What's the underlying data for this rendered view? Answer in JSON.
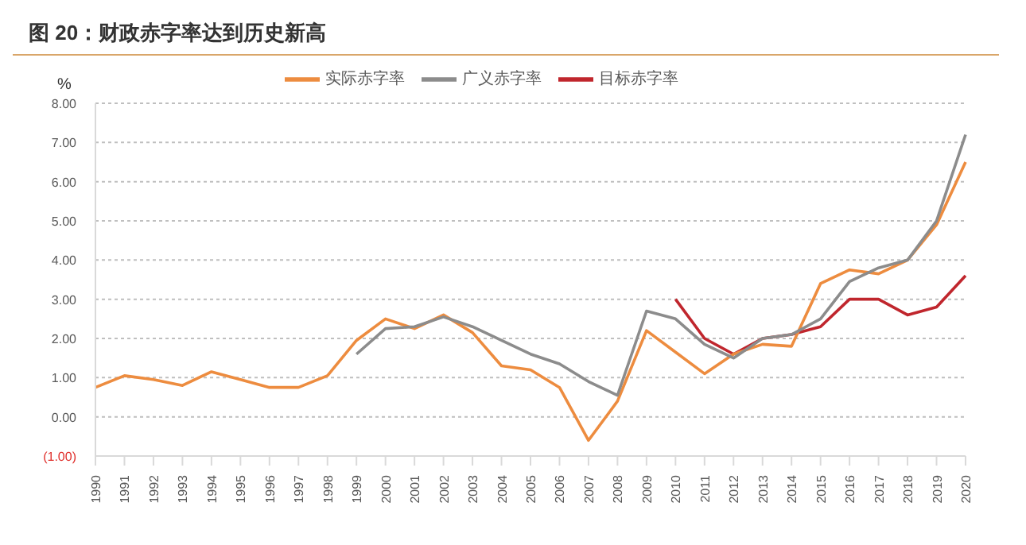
{
  "chart_data": {
    "type": "line",
    "title": "图 20：财政赤字率达到历史新高",
    "ylabel": "%",
    "categories": [
      "1990",
      "1991",
      "1992",
      "1993",
      "1994",
      "1995",
      "1996",
      "1997",
      "1998",
      "1999",
      "2000",
      "2001",
      "2002",
      "2003",
      "2004",
      "2005",
      "2006",
      "2007",
      "2008",
      "2009",
      "2010",
      "2011",
      "2012",
      "2013",
      "2014",
      "2015",
      "2016",
      "2017",
      "2018",
      "2019",
      "2020"
    ],
    "series": [
      {
        "name": "目标赤字率",
        "color": "#c0262d",
        "values": [
          null,
          null,
          null,
          null,
          null,
          null,
          null,
          null,
          null,
          null,
          null,
          null,
          null,
          null,
          null,
          null,
          null,
          null,
          null,
          null,
          3.0,
          2.0,
          1.6,
          2.0,
          2.1,
          2.3,
          3.0,
          3.0,
          2.6,
          2.8,
          3.6
        ]
      },
      {
        "name": "实际赤字率",
        "color": "#ed8c3f",
        "values": [
          0.75,
          1.05,
          0.95,
          0.8,
          1.15,
          0.95,
          0.75,
          0.75,
          1.05,
          1.95,
          2.5,
          2.25,
          2.6,
          2.15,
          1.3,
          1.2,
          0.75,
          -0.6,
          0.4,
          2.2,
          1.65,
          1.1,
          1.6,
          1.85,
          1.8,
          3.4,
          3.75,
          3.65,
          4.0,
          4.9,
          6.5
        ]
      },
      {
        "name": "广义赤字率",
        "color": "#8c8c8c",
        "values": [
          null,
          null,
          null,
          null,
          null,
          null,
          null,
          null,
          null,
          1.6,
          2.25,
          2.3,
          2.55,
          2.3,
          1.95,
          1.6,
          1.35,
          0.9,
          0.55,
          2.7,
          2.5,
          1.85,
          1.5,
          2.0,
          2.1,
          2.5,
          3.45,
          3.8,
          4.0,
          5.0,
          7.2
        ]
      }
    ],
    "ylim": [
      -1,
      8
    ],
    "yticks": [
      {
        "value": -1,
        "label": "(1.00)"
      },
      {
        "value": 0,
        "label": "0.00"
      },
      {
        "value": 1,
        "label": "1.00"
      },
      {
        "value": 2,
        "label": "2.00"
      },
      {
        "value": 3,
        "label": "3.00"
      },
      {
        "value": 4,
        "label": "4.00"
      },
      {
        "value": 5,
        "label": "5.00"
      },
      {
        "value": 6,
        "label": "6.00"
      },
      {
        "value": 7,
        "label": "7.00"
      },
      {
        "value": 8,
        "label": "8.00"
      }
    ],
    "grid": "y",
    "legend": "top",
    "marker": "none",
    "line_style": "solid"
  }
}
